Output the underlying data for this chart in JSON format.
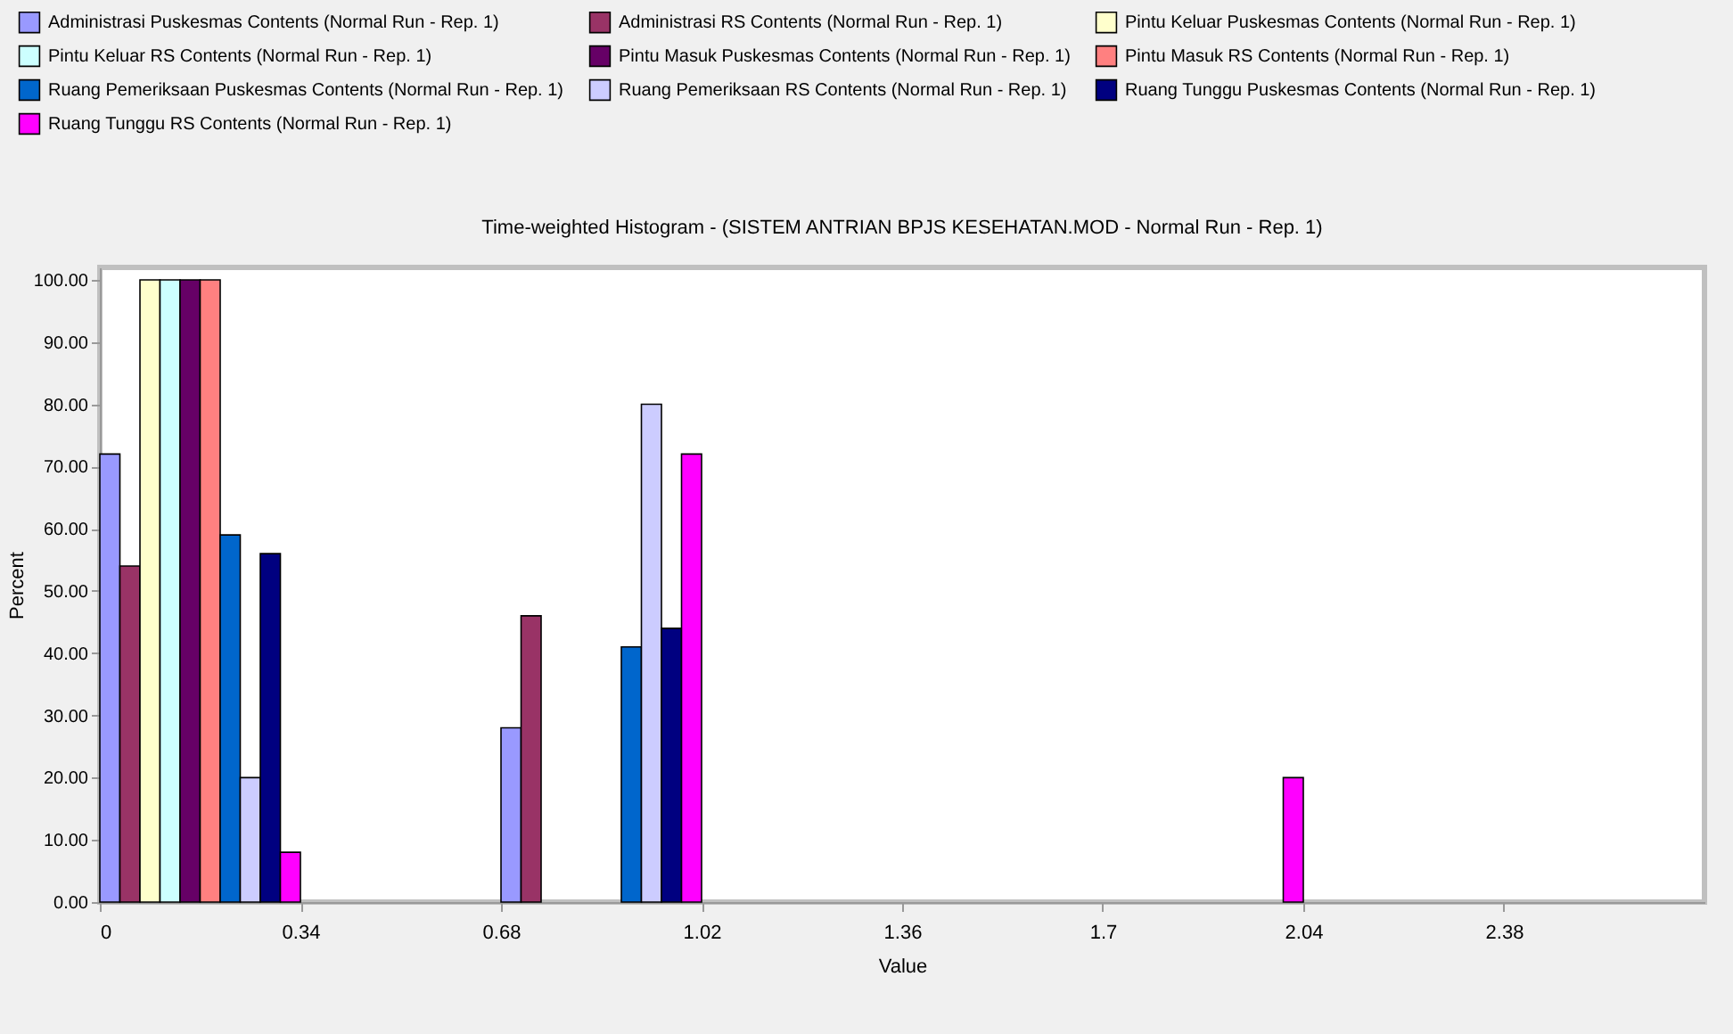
{
  "chart_data": {
    "type": "histogram",
    "title": "Time-weighted Histogram - (SISTEM ANTRIAN BPJS KESEHATAN.MOD - Normal Run - Rep. 1)",
    "xlabel": "Value",
    "ylabel": "Percent",
    "bins": [
      0,
      0.34,
      0.68,
      1.02,
      1.36,
      1.7,
      2.04,
      2.38,
      2.72
    ],
    "series": [
      {
        "name": "Administrasi Puskesmas Contents (Normal Run - Rep. 1)",
        "color": "#9999ff",
        "values": [
          72,
          null,
          28,
          null,
          null,
          null,
          null,
          null
        ]
      },
      {
        "name": "Administrasi RS Contents (Normal Run - Rep. 1)",
        "color": "#993366",
        "values": [
          54,
          null,
          46,
          null,
          null,
          null,
          null,
          null
        ]
      },
      {
        "name": "Pintu Keluar Puskesmas Contents (Normal Run - Rep. 1)",
        "color": "#ffffcc",
        "values": [
          100,
          null,
          null,
          null,
          null,
          null,
          null,
          null
        ]
      },
      {
        "name": "Pintu Keluar RS Contents (Normal Run - Rep. 1)",
        "color": "#ccffff",
        "values": [
          100,
          null,
          null,
          null,
          null,
          null,
          null,
          null
        ]
      },
      {
        "name": "Pintu Masuk Puskesmas Contents (Normal Run - Rep. 1)",
        "color": "#660066",
        "values": [
          100,
          null,
          null,
          null,
          null,
          null,
          null,
          null
        ]
      },
      {
        "name": "Pintu Masuk RS Contents (Normal Run - Rep. 1)",
        "color": "#ff8080",
        "values": [
          100,
          null,
          null,
          null,
          null,
          null,
          null,
          null
        ]
      },
      {
        "name": "Ruang Pemeriksaan Puskesmas Contents (Normal Run - Rep. 1)",
        "color": "#0066cc",
        "values": [
          59,
          null,
          41,
          null,
          null,
          null,
          null,
          null
        ]
      },
      {
        "name": "Ruang Pemeriksaan RS Contents (Normal Run - Rep. 1)",
        "color": "#ccccff",
        "values": [
          20,
          null,
          80,
          null,
          null,
          null,
          null,
          null
        ]
      },
      {
        "name": "Ruang Tunggu Puskesmas Contents (Normal Run - Rep. 1)",
        "color": "#000080",
        "values": [
          56,
          null,
          44,
          null,
          null,
          null,
          null,
          null
        ]
      },
      {
        "name": "Ruang Tunggu RS Contents (Normal Run - Rep. 1)",
        "color": "#ff00ff",
        "values": [
          8,
          null,
          72,
          null,
          null,
          20,
          null,
          null
        ]
      }
    ],
    "xlim": [
      0,
      2.72
    ],
    "xticks": [
      0,
      0.34,
      0.68,
      1.02,
      1.36,
      1.7,
      2.04,
      2.38
    ],
    "ylim": [
      0,
      102
    ],
    "yticks": [
      {
        "value": 0,
        "label": "0.00"
      },
      {
        "value": 10,
        "label": "10.00"
      },
      {
        "value": 20,
        "label": "20.00"
      },
      {
        "value": 30,
        "label": "30.00"
      },
      {
        "value": 40,
        "label": "40.00"
      },
      {
        "value": 50,
        "label": "50.00"
      },
      {
        "value": 60,
        "label": "60.00"
      },
      {
        "value": 70,
        "label": "70.00"
      },
      {
        "value": 80,
        "label": "80.00"
      },
      {
        "value": 90,
        "label": "90.00"
      },
      {
        "value": 100,
        "label": "100.00"
      }
    ],
    "grid": false,
    "legend": "top"
  }
}
